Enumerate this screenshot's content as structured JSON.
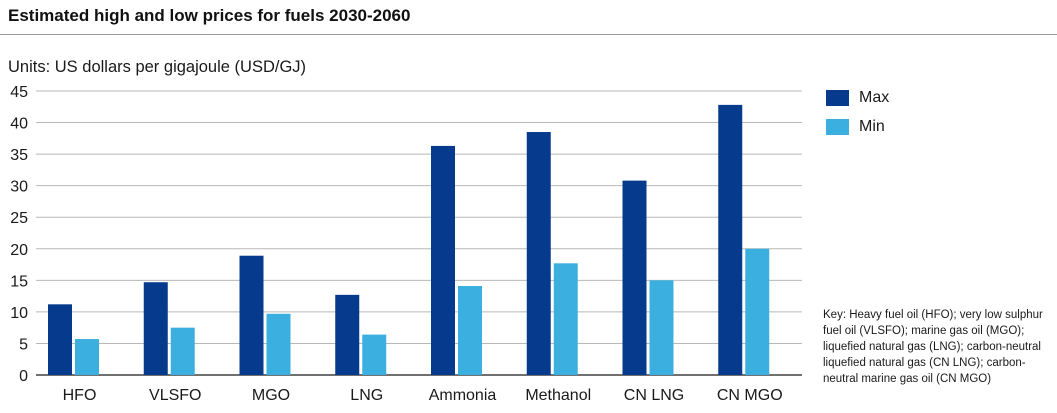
{
  "header": {
    "title": "Estimated high and low prices for fuels 2030-2060",
    "units": "Units: US dollars per gigajoule (USD/GJ)"
  },
  "key_note": "Key: Heavy fuel oil (HFO); very low sulphur fuel oil (VLSFO); marine gas oil (MGO); liquefied natural gas (LNG); carbon-neutral liquefied natural gas (CN LNG); carbon-neutral marine gas oil (CN MGO)",
  "colors": {
    "max": "#063a8c",
    "min": "#3bb0e0",
    "grid": "#b8b8b8",
    "axis": "#1a1a1a"
  },
  "chart_data": {
    "type": "bar",
    "title": "Estimated high and low prices for fuels 2030-2060",
    "ylabel": "Units: US dollars per gigajoule (USD/GJ)",
    "xlabel": "",
    "categories": [
      "HFO",
      "VLSFO",
      "MGO",
      "LNG",
      "Ammonia",
      "Methanol",
      "CN LNG",
      "CN MGO"
    ],
    "series": [
      {
        "name": "Max",
        "values": [
          11.2,
          14.7,
          18.9,
          12.7,
          36.3,
          38.5,
          30.8,
          42.8
        ]
      },
      {
        "name": "Min",
        "values": [
          5.7,
          7.5,
          9.7,
          6.4,
          14.1,
          17.7,
          15.0,
          20.0
        ]
      }
    ],
    "ylim": [
      0,
      45
    ],
    "yticks": [
      0,
      5,
      10,
      15,
      20,
      25,
      30,
      35,
      40,
      45
    ],
    "grid": true,
    "legend": "right"
  }
}
